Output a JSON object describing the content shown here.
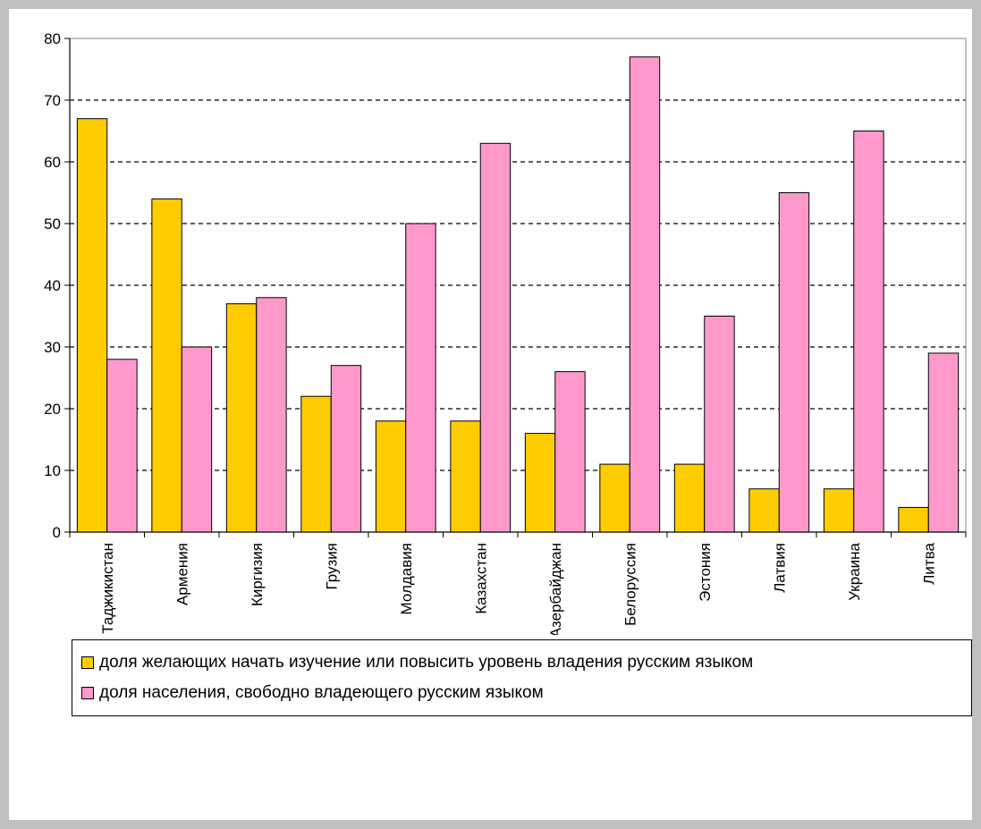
{
  "chart_data": {
    "type": "bar",
    "categories": [
      "Таджикистан",
      "Армения",
      "Киргизия",
      "Грузия",
      "Молдавия",
      "Казахстан",
      "Азербайджан",
      "Белоруссия",
      "Эстония",
      "Латвия",
      "Украина",
      "Литва"
    ],
    "series": [
      {
        "name": "доля желающих начать изучение или повысить уровень владения русским языком",
        "color": "#ffcc00",
        "values": [
          67,
          54,
          37,
          22,
          18,
          18,
          16,
          11,
          11,
          7,
          7,
          4
        ]
      },
      {
        "name": "доля населения, свободно владеющего русским языком",
        "color": "#ff99cc",
        "values": [
          28,
          30,
          38,
          27,
          50,
          63,
          26,
          77,
          35,
          55,
          65,
          29
        ]
      }
    ],
    "ylim": [
      0,
      80
    ],
    "yticks": [
      0,
      10,
      20,
      30,
      40,
      50,
      60,
      70,
      80
    ],
    "grid": "horizontal-dashed",
    "legend_position": "bottom"
  }
}
